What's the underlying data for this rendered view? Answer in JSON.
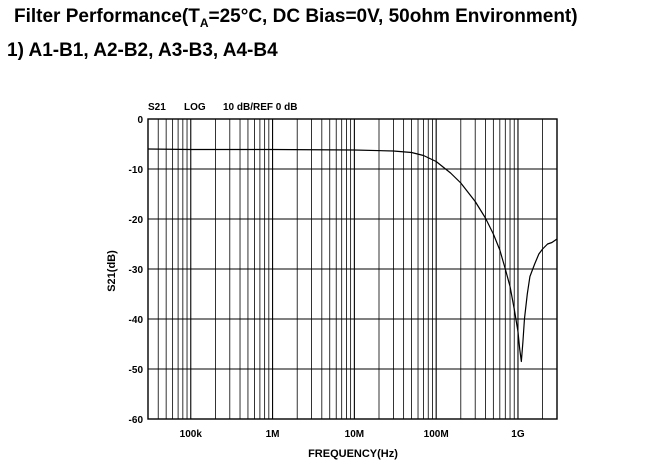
{
  "heading": {
    "prefix": "Filter Performance(T",
    "sub": "A",
    "suffix": "=25°C, DC Bias=0V, 50ohm Environment)",
    "subtitle": "1) A1-B1, A2-B2, A3-B3, A4-B4"
  },
  "chart_data": {
    "type": "line",
    "header": {
      "trace": "S21",
      "format": "LOG",
      "scale": "10 dB/REF 0 dB"
    },
    "xlabel": "FREQUENCY(Hz)",
    "ylabel": "S21(dB)",
    "xscale": "log",
    "xlim_hz": [
      30000,
      3000000000
    ],
    "ylim": [
      -60,
      0
    ],
    "yticks": [
      0,
      -10,
      -20,
      -30,
      -40,
      -50,
      -60
    ],
    "ytick_labels": [
      "0",
      "-10",
      "-20",
      "-30",
      "-40",
      "-50",
      "-60"
    ],
    "xticks_hz": [
      100000,
      1000000,
      10000000,
      100000000,
      1000000000
    ],
    "xtick_labels": [
      "100k",
      "1M",
      "10M",
      "100M",
      "1G"
    ],
    "grid": true,
    "series": [
      {
        "x": [
          30000,
          100000,
          1000000,
          10000000,
          30000000,
          50000000,
          70000000,
          100000000,
          150000000,
          200000000,
          300000000,
          400000000,
          500000000,
          600000000,
          700000000,
          800000000,
          900000000,
          1000000000,
          1050000000,
          1100000000,
          1150000000,
          1200000000,
          1300000000,
          1400000000,
          1600000000,
          1800000000,
          2000000000,
          2300000000,
          2600000000,
          3000000000
        ],
        "y": [
          -6,
          -6.1,
          -6.1,
          -6.2,
          -6.4,
          -6.7,
          -7.3,
          -8.5,
          -10.8,
          -12.8,
          -16.5,
          -19.8,
          -23,
          -26.2,
          -30,
          -33.5,
          -38,
          -42.5,
          -46,
          -48.5,
          -44.5,
          -40,
          -35,
          -31.5,
          -29,
          -27,
          -26,
          -25,
          -24.7,
          -24
        ]
      }
    ]
  }
}
